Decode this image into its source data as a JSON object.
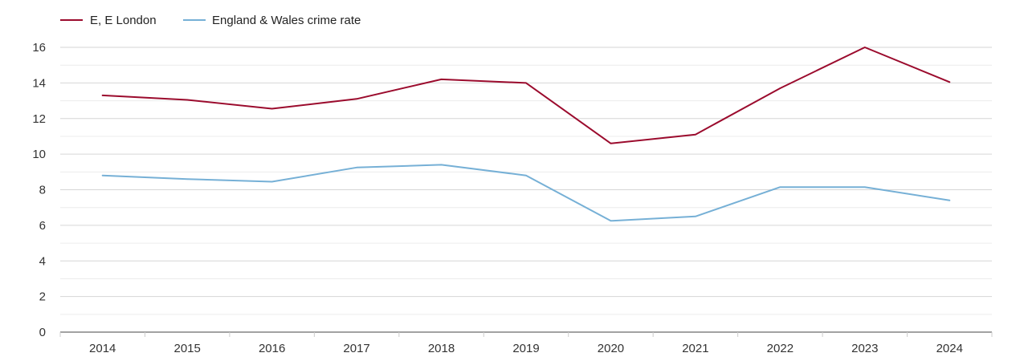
{
  "chart_data": {
    "type": "line",
    "title": "",
    "xlabel": "",
    "ylabel": "",
    "categories": [
      "2014",
      "2015",
      "2016",
      "2017",
      "2018",
      "2019",
      "2020",
      "2021",
      "2022",
      "2023",
      "2024"
    ],
    "ylim": [
      0,
      16
    ],
    "yticks": [
      "0",
      "2",
      "4",
      "6",
      "8",
      "10",
      "12",
      "14",
      "16"
    ],
    "grid": true,
    "legend_position": "top-left",
    "series": [
      {
        "name": "E, E London",
        "color": "#9b0b2d",
        "values": [
          13.3,
          13.05,
          12.55,
          13.1,
          14.2,
          14.0,
          10.6,
          11.1,
          13.7,
          16.0,
          14.05
        ]
      },
      {
        "name": "England & Wales crime rate",
        "color": "#76b0d6",
        "values": [
          8.8,
          8.6,
          8.45,
          9.25,
          9.4,
          8.8,
          6.25,
          6.5,
          8.15,
          8.15,
          7.4
        ]
      }
    ]
  }
}
